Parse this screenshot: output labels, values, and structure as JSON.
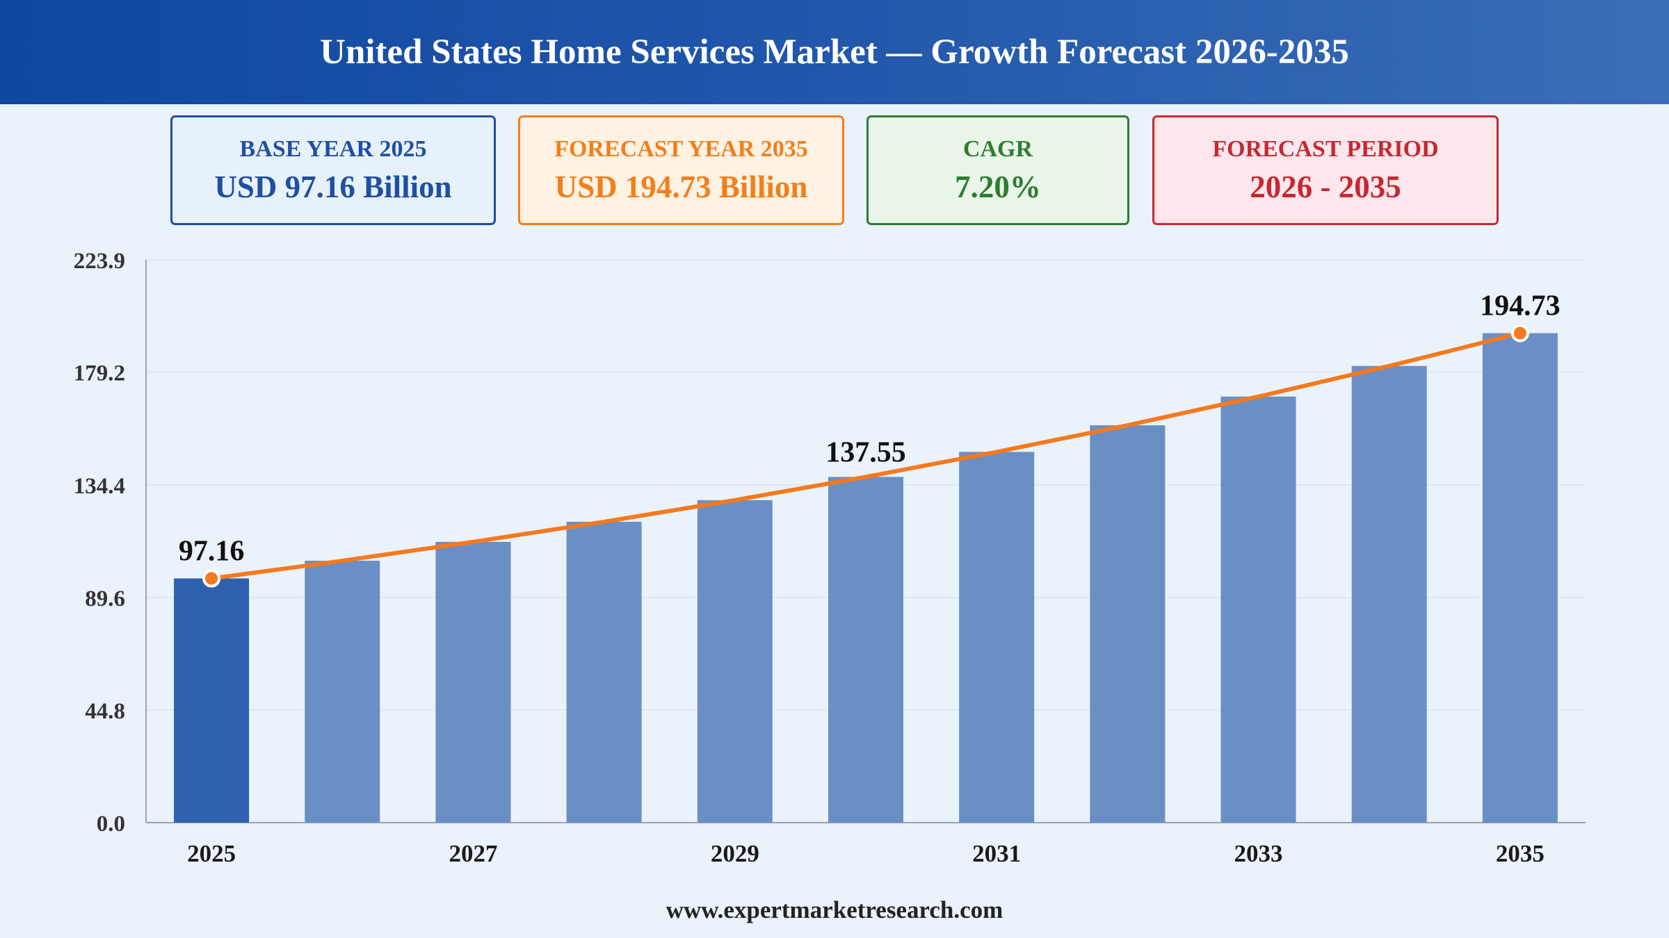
{
  "header": {
    "title": "United States Home Services Market — Growth Forecast 2026-2035"
  },
  "cards": {
    "base": {
      "label": "BASE YEAR 2025",
      "value": "USD 97.16 Billion"
    },
    "forecast": {
      "label": "FORECAST YEAR 2035",
      "value": "USD 194.73 Billion"
    },
    "cagr": {
      "label": "CAGR",
      "value": "7.20%"
    },
    "period": {
      "label": "FORECAST PERIOD",
      "value": "2026 - 2035"
    }
  },
  "footer": {
    "text": "www.expertmarketresearch.com"
  },
  "colors": {
    "bar_base": "#2f60b0",
    "bar": "#6a8fc4",
    "line": "#f5791e",
    "grid": "#dde5ef",
    "axis": "#9aa4b0",
    "tick_text": "#333333",
    "label_text": "#111111"
  },
  "chart_data": {
    "type": "bar",
    "title": "",
    "xlabel": "",
    "ylabel": "",
    "categories": [
      "2025",
      "2026",
      "2027",
      "2028",
      "2029",
      "2030",
      "2031",
      "2032",
      "2033",
      "2034",
      "2035"
    ],
    "x_tick_labels": [
      "2025",
      "",
      "2027",
      "",
      "2029",
      "",
      "2031",
      "",
      "2033",
      "",
      "2035"
    ],
    "series": [
      {
        "type": "bar",
        "values": [
          97.16,
          104.2,
          111.7,
          119.7,
          128.3,
          137.55,
          147.5,
          158.1,
          169.5,
          181.7,
          194.73
        ]
      },
      {
        "type": "line",
        "values": [
          97.16,
          104.2,
          111.7,
          119.7,
          128.3,
          137.55,
          147.5,
          158.1,
          169.5,
          181.7,
          194.73
        ]
      }
    ],
    "highlight_category": "2025",
    "data_labels": [
      {
        "category": "2025",
        "text": "97.16",
        "marker": true
      },
      {
        "category": "2030",
        "text": "137.55",
        "marker": false
      },
      {
        "category": "2035",
        "text": "194.73",
        "marker": true
      }
    ],
    "y_ticks": [
      "0.0",
      "44.8",
      "89.6",
      "134.4",
      "179.2",
      "223.9"
    ],
    "ylim": [
      0,
      223.9
    ],
    "grid": true,
    "legend": "none"
  }
}
